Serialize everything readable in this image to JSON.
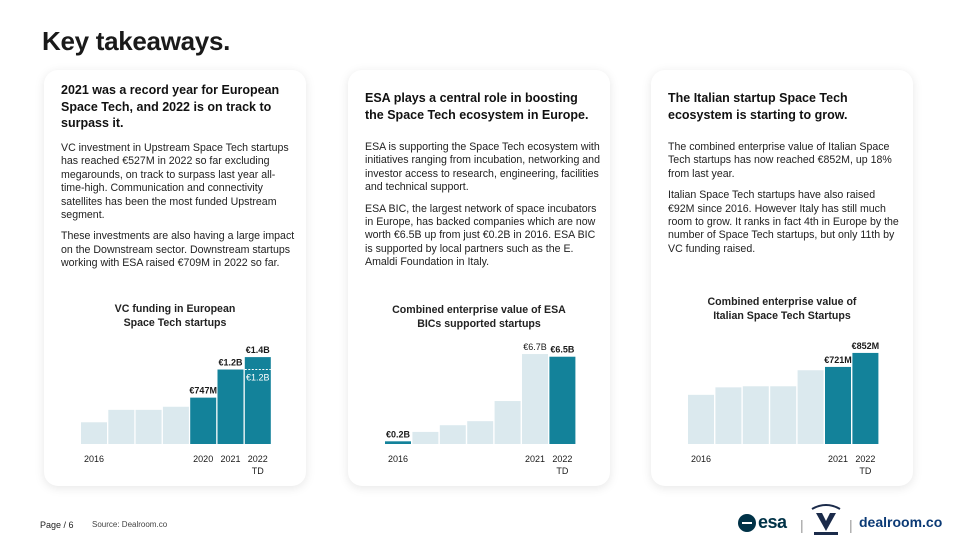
{
  "title": "Key takeaways.",
  "colors": {
    "accent": "#13829a",
    "light_bar": "#dbe9ee",
    "text": "#1a1a1a"
  },
  "cards": [
    {
      "heading": "2021 was a record year for European Space Tech, and 2022 is on track to surpass it.",
      "paragraphs": [
        "VC investment in Upstream Space Tech startups has reached €527M in 2022 so far excluding megarounds, on track to surpass last year all-time-high. Communication and connectivity satellites has been the most funded Upstream segment.",
        "These investments are also having a large impact on the Downstream sector. Downstream startups working with ESA raised €709M in 2022 so far."
      ]
    },
    {
      "heading": "ESA plays a central role in boosting the Space Tech ecosystem in Europe.",
      "paragraphs": [
        "ESA is supporting the Space Tech ecosystem with initiatives ranging from incubation, networking and investor access to research, engineering, facilities and technical support.",
        "ESA BIC, the largest network of space incubators in Europe, has backed companies which are now worth €6.5B up from just €0.2B in 2016. ESA BIC is supported by local partners such as the E. Amaldi Foundation in Italy."
      ]
    },
    {
      "heading": "The Italian startup Space Tech ecosystem is starting to grow.",
      "paragraphs": [
        "The combined enterprise value of Italian Space Tech startups has now reached €852M, up 18% from last year.",
        "Italian Space Tech startups have also raised €92M since 2016. However Italy has still much room to grow. It ranks in fact 4th in Europe by the number of Space Tech startups, but only 11th by VC funding raised."
      ]
    }
  ],
  "chart_data": [
    {
      "type": "bar",
      "title": "VC funding in European Space Tech startups",
      "categories": [
        "2016",
        "2017",
        "2018",
        "2019",
        "2020",
        "2021",
        "2022 TD"
      ],
      "tick_labels": [
        "2016",
        "",
        "",
        "",
        "2020",
        "2021",
        "2022",
        "TD"
      ],
      "values": [
        0.35,
        0.55,
        0.55,
        0.6,
        0.747,
        1.2,
        1.4
      ],
      "highlight_from_index": 4,
      "data_labels": [
        "",
        "",
        "",
        "",
        "€747M",
        "€1.2B",
        "€1.4B"
      ],
      "partial_value": 1.2,
      "partial_label": "€1.2B",
      "ylim": [
        0,
        1.45
      ]
    },
    {
      "type": "bar",
      "title": "Combined enterprise value of ESA BICs supported startups",
      "categories": [
        "2016",
        "2017",
        "2018",
        "2019",
        "2020",
        "2021",
        "2022 TD"
      ],
      "tick_labels": [
        "2016",
        "",
        "",
        "",
        "",
        "2021",
        "2022",
        "TD"
      ],
      "values": [
        0.2,
        0.9,
        1.4,
        1.7,
        3.2,
        6.7,
        6.5
      ],
      "highlight_indices": [
        0,
        6
      ],
      "data_labels": [
        "€0.2B",
        "",
        "",
        "",
        "",
        "€6.7B",
        "€6.5B"
      ],
      "ylim": [
        0,
        7.0
      ]
    },
    {
      "type": "bar",
      "title": "Combined enterprise value of Italian Space Tech Startups",
      "categories": [
        "2016",
        "2017",
        "2018",
        "2019",
        "2020",
        "2021",
        "2022 TD"
      ],
      "tick_labels": [
        "2016",
        "",
        "",
        "",
        "",
        "2021",
        "2022",
        "TD"
      ],
      "values": [
        0.46,
        0.53,
        0.54,
        0.54,
        0.69,
        0.721,
        0.852
      ],
      "highlight_from_index": 5,
      "data_labels": [
        "",
        "",
        "",
        "",
        "",
        "€721M",
        "€852M"
      ],
      "ylim": [
        0,
        0.87
      ]
    }
  ],
  "footer": {
    "page": "Page / 6",
    "source": "Source: Dealroom.co",
    "esa": "esa",
    "dealroom": "dealroom.co"
  }
}
